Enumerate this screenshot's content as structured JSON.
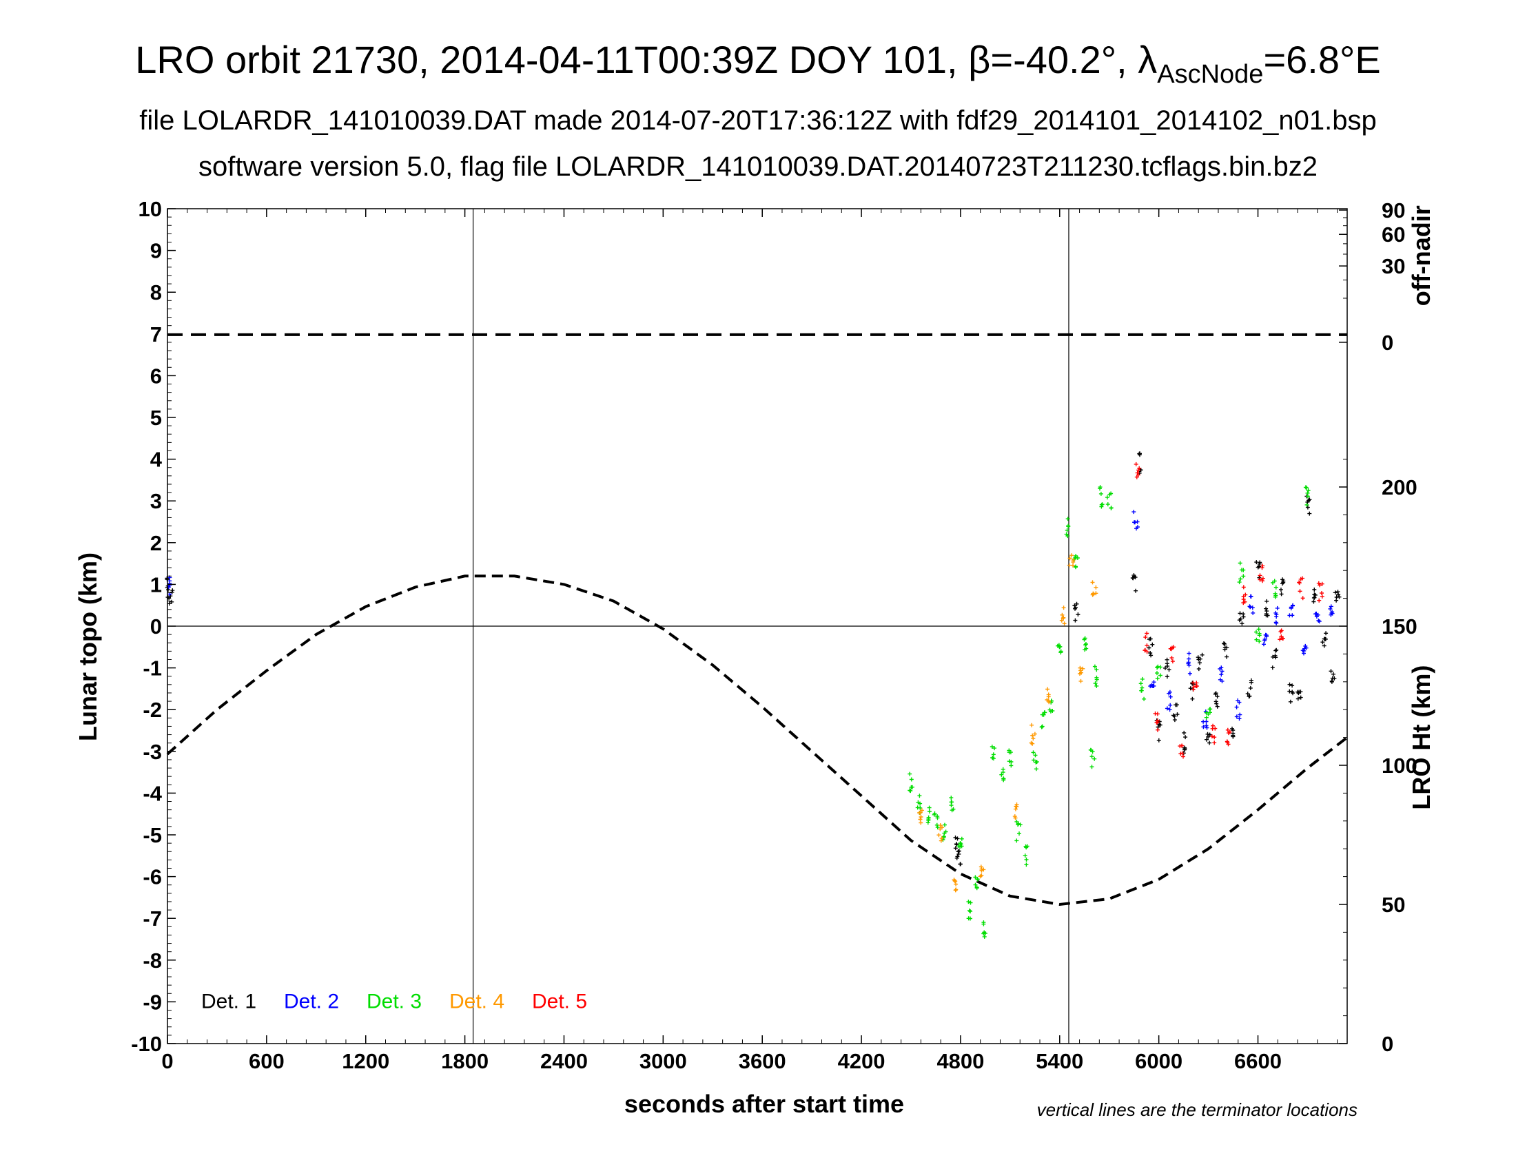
{
  "title": {
    "line1_prefix": "LRO orbit 21730, 2014-04-11T00:39Z DOY 101, β=-40.2°, λ",
    "line1_sub": "AscNode",
    "line1_suffix": "=6.8°E",
    "line2": "file LOLARDR_141010039.DAT made 2014-07-20T17:36:12Z with fdf29_2014101_2014102_n01.bsp",
    "line3": "software version 5.0, flag file LOLARDR_141010039.DAT.20140723T211230.tcflags.bin.bz2"
  },
  "chart_data": {
    "type": "scatter",
    "xlabel": "seconds after start time",
    "ylabel": "Lunar topo (km)",
    "y2label_top": "off-nadir",
    "y2label_bottom": "LRO Ht (km)",
    "note": "vertical lines are the terminator locations",
    "xlim": [
      0,
      7140
    ],
    "ylim": [
      -10,
      10
    ],
    "xticks": [
      0,
      600,
      1200,
      1800,
      2400,
      3000,
      3600,
      4200,
      4800,
      5400,
      6000,
      6600
    ],
    "yticks": [
      -10,
      -9,
      -8,
      -7,
      -6,
      -5,
      -4,
      -3,
      -2,
      -1,
      0,
      1,
      2,
      3,
      4,
      5,
      6,
      7,
      8,
      9,
      10
    ],
    "offnadir_ticks": [
      0,
      30,
      60,
      90
    ],
    "height_ticks": [
      0,
      50,
      100,
      150,
      200
    ],
    "terminator_x": [
      1850,
      5455
    ],
    "offnadir_deg": 0.3,
    "legend": [
      {
        "name": "Det. 1",
        "color": "#000000"
      },
      {
        "name": "Det. 2",
        "color": "#0000ff"
      },
      {
        "name": "Det. 3",
        "color": "#00dd00"
      },
      {
        "name": "Det. 4",
        "color": "#ff9900"
      },
      {
        "name": "Det. 5",
        "color": "#ff0000"
      }
    ],
    "lro_height_km": {
      "x": [
        0,
        300,
        600,
        900,
        1200,
        1500,
        1800,
        2100,
        2400,
        2700,
        3000,
        3300,
        3600,
        3900,
        4200,
        4500,
        4800,
        5100,
        5400,
        5700,
        6000,
        6300,
        6600,
        6900,
        7140
      ],
      "y": [
        104,
        120,
        134,
        147,
        157,
        164,
        168,
        168,
        165,
        159,
        149,
        136,
        121,
        105,
        89,
        73,
        61,
        53,
        50,
        52,
        59,
        70,
        84,
        99,
        110
      ]
    },
    "series": [
      {
        "name": "Det. 1",
        "x": [
          10,
          20,
          4780,
          4790,
          5500,
          5850,
          5880,
          5950,
          6000,
          6050,
          6100,
          6150,
          6200,
          6250,
          6300,
          6350,
          6400,
          6450,
          6500,
          6550,
          6600,
          6650,
          6700,
          6750,
          6800,
          6850,
          6900,
          6950,
          7000,
          7050,
          7080
        ],
        "y": [
          0.9,
          0.7,
          -5.3,
          -5.5,
          0.3,
          1.0,
          3.9,
          -0.5,
          -2.5,
          -1.0,
          -2.0,
          -2.8,
          -1.5,
          -0.8,
          -2.6,
          -1.8,
          -0.5,
          -2.4,
          0.2,
          -1.5,
          1.3,
          0.4,
          -0.8,
          1.0,
          -1.6,
          -1.7,
          2.9,
          0.8,
          -0.3,
          -1.1,
          0.6
        ]
      },
      {
        "name": "Det. 2",
        "x": [
          15,
          5860,
          5960,
          6060,
          6180,
          6280,
          6380,
          6480,
          6560,
          6640,
          6720,
          6800,
          6880,
          6960,
          7040
        ],
        "y": [
          1.0,
          2.5,
          -1.4,
          -1.8,
          -0.9,
          -2.2,
          -1.2,
          -2.0,
          0.5,
          -0.3,
          0.2,
          0.5,
          -0.7,
          0.1,
          0.3
        ]
      },
      {
        "name": "Det. 3",
        "x": [
          4500,
          4550,
          4600,
          4650,
          4700,
          4750,
          4800,
          4850,
          4900,
          4950,
          5000,
          5050,
          5100,
          5150,
          5200,
          5250,
          5300,
          5350,
          5400,
          5450,
          5500,
          5550,
          5600,
          5620,
          5650,
          5700,
          5900,
          6000,
          6300,
          6500,
          6600,
          6700,
          6900
        ],
        "y": [
          -3.7,
          -4.3,
          -4.5,
          -4.7,
          -5.0,
          -4.2,
          -5.1,
          -6.8,
          -6.2,
          -7.2,
          -3.0,
          -3.5,
          -3.2,
          -4.9,
          -5.5,
          -3.2,
          -2.2,
          -1.8,
          -0.5,
          2.4,
          1.5,
          -0.5,
          -3.2,
          -1.2,
          3.1,
          3.0,
          -1.5,
          -1.2,
          -2.0,
          1.3,
          -0.2,
          0.9,
          3.1
        ]
      },
      {
        "name": "Det. 4",
        "x": [
          4560,
          4680,
          4770,
          4930,
          5130,
          5240,
          5330,
          5420,
          5470,
          5530,
          5610
        ],
        "y": [
          -4.5,
          -4.9,
          -6.1,
          -6.0,
          -4.4,
          -2.6,
          -1.6,
          0.3,
          1.7,
          -1.2,
          0.9
        ]
      },
      {
        "name": "Det. 5",
        "x": [
          5870,
          5920,
          5990,
          6080,
          6140,
          6220,
          6330,
          6420,
          6520,
          6620,
          6740,
          6860,
          6980
        ],
        "y": [
          3.7,
          -0.4,
          -2.3,
          -0.7,
          -2.9,
          -1.3,
          -2.6,
          -2.7,
          0.8,
          1.2,
          -0.2,
          0.9,
          0.8
        ]
      }
    ]
  }
}
